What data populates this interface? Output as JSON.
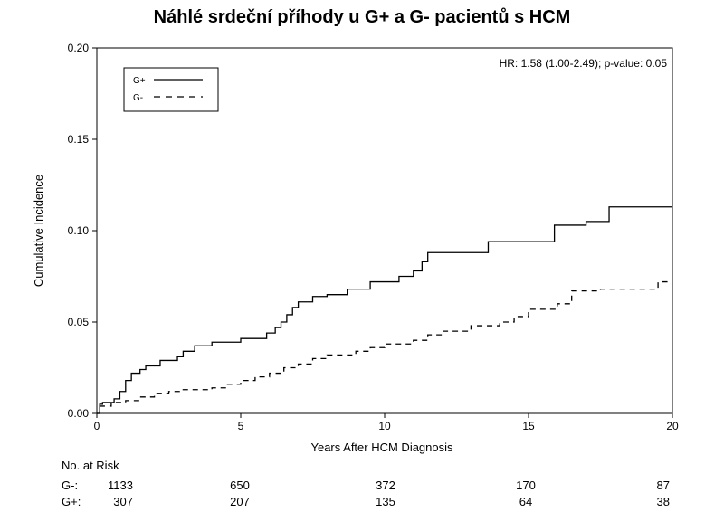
{
  "chart_data": {
    "type": "line",
    "title": "Náhlé srdeční příhody u G+ a G- pacientů s HCM",
    "xlabel": "Years After HCM Diagnosis",
    "ylabel": "Cumulative Incidence",
    "xlim": [
      0,
      20
    ],
    "ylim": [
      0,
      0.2
    ],
    "x_ticks": [
      "0",
      "5",
      "10",
      "15",
      "20"
    ],
    "y_ticks": [
      "0.00",
      "0.05",
      "0.10",
      "0.15",
      "0.20"
    ],
    "grid": false,
    "legend_position": "top-left",
    "annotation": "HR: 1.58 (1.00-2.49); p-value: 0.05",
    "series": [
      {
        "name": "G+",
        "style": "solid",
        "color": "#000000",
        "x": [
          0,
          0.1,
          0.2,
          0.6,
          0.8,
          1.0,
          1.2,
          1.5,
          1.7,
          2.2,
          2.8,
          3.0,
          3.4,
          4.0,
          5.0,
          5.9,
          6.2,
          6.4,
          6.6,
          6.8,
          7.0,
          7.5,
          8.0,
          8.7,
          9.5,
          10.5,
          11.0,
          11.3,
          11.5,
          12.5,
          13.6,
          14.5,
          15.9,
          17.0,
          17.8,
          20.0
        ],
        "y": [
          0.0,
          0.005,
          0.006,
          0.008,
          0.012,
          0.018,
          0.022,
          0.024,
          0.026,
          0.029,
          0.031,
          0.034,
          0.037,
          0.039,
          0.041,
          0.044,
          0.047,
          0.05,
          0.054,
          0.058,
          0.061,
          0.064,
          0.065,
          0.068,
          0.072,
          0.075,
          0.078,
          0.083,
          0.088,
          0.088,
          0.094,
          0.094,
          0.103,
          0.105,
          0.113,
          0.113
        ]
      },
      {
        "name": "G-",
        "style": "dashed",
        "color": "#000000",
        "x": [
          0,
          0.1,
          0.5,
          1.0,
          1.5,
          2.0,
          2.5,
          3.0,
          4.0,
          4.5,
          5.0,
          5.5,
          6.0,
          6.5,
          7.0,
          7.5,
          8.0,
          9.0,
          9.5,
          10.0,
          11.0,
          11.5,
          12.0,
          13.0,
          14.0,
          14.5,
          15.0,
          16.0,
          16.5,
          17.5,
          19.5,
          20.0
        ],
        "y": [
          0.0,
          0.004,
          0.006,
          0.007,
          0.009,
          0.011,
          0.012,
          0.013,
          0.014,
          0.016,
          0.018,
          0.02,
          0.022,
          0.025,
          0.027,
          0.03,
          0.032,
          0.034,
          0.036,
          0.038,
          0.04,
          0.043,
          0.045,
          0.048,
          0.05,
          0.053,
          0.057,
          0.06,
          0.067,
          0.068,
          0.072,
          0.072
        ]
      }
    ]
  },
  "risk_table": {
    "heading": "No. at Risk",
    "rows": [
      {
        "label": "G-:",
        "values": [
          "1133",
          "650",
          "372",
          "170",
          "87"
        ]
      },
      {
        "label": "G+:",
        "values": [
          "307",
          "207",
          "135",
          "64",
          "38"
        ]
      }
    ]
  }
}
